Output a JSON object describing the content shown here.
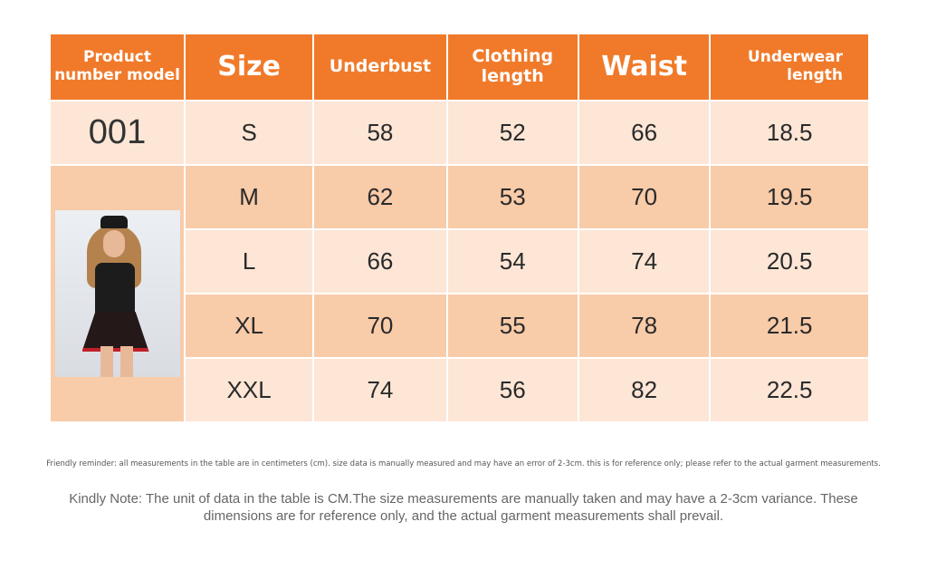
{
  "table": {
    "headers": [
      {
        "label": "Product number model"
      },
      {
        "label": "Size"
      },
      {
        "label": "Underbust"
      },
      {
        "label": "Clothing length"
      },
      {
        "label": "Waist"
      },
      {
        "label": "Underwear length"
      }
    ],
    "model": "001",
    "rows": [
      {
        "size": "S",
        "underbust": "58",
        "clothing_length": "52",
        "waist": "66",
        "underwear_length": "18.5"
      },
      {
        "size": "M",
        "underbust": "62",
        "clothing_length": "53",
        "waist": "70",
        "underwear_length": "19.5"
      },
      {
        "size": "L",
        "underbust": "66",
        "clothing_length": "54",
        "waist": "74",
        "underwear_length": "20.5"
      },
      {
        "size": "XL",
        "underbust": "70",
        "clothing_length": "55",
        "waist": "78",
        "underwear_length": "21.5"
      },
      {
        "size": "XXL",
        "underbust": "74",
        "clothing_length": "56",
        "waist": "82",
        "underwear_length": "22.5"
      }
    ]
  },
  "reminder": "Friendly reminder: all measurements in the table are in centimeters (cm). size data is manually measured and may have an error of 2-3cm. this is for reference only; please refer to the actual garment measurements.",
  "note": "Kindly Note: The unit of data in the table is CM.The size measurements are manually taken and may have a 2-3cm variance. These dimensions are for reference only, and the actual garment measurements shall prevail.",
  "colors": {
    "header": "#f07a2a",
    "row_light": "#fde6d6",
    "row_dark": "#f8cba9"
  }
}
